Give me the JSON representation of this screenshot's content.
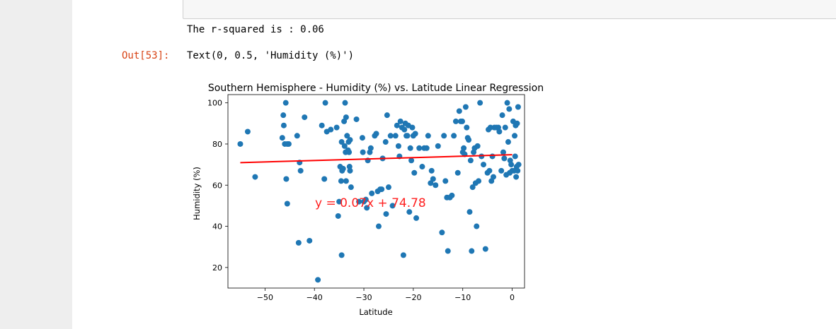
{
  "cell": {
    "stdout": "The r-squared is : 0.06",
    "out_prompt": "Out[53]:",
    "out_text": "Text(0, 0.5, 'Humidity (%)')"
  },
  "colors": {
    "points": "#1f77b4",
    "line": "#ff0000",
    "annotation": "#ff2020"
  },
  "chart_data": {
    "type": "scatter",
    "title": "Southern Hemisphere - Humidity (%) vs. Latitude Linear Regression",
    "xlabel": "Latitude",
    "ylabel": "Humidity (%)",
    "xlim": [
      -57.5,
      2.5
    ],
    "ylim": [
      10,
      104
    ],
    "xticks": [
      -50,
      -40,
      -30,
      -20,
      -10,
      0
    ],
    "yticks": [
      20,
      40,
      60,
      80,
      100
    ],
    "xtick_labels": [
      "−50",
      "−40",
      "−30",
      "−20",
      "−10",
      "0"
    ],
    "ytick_labels": [
      "20",
      "40",
      "60",
      "80",
      "100"
    ],
    "regression": {
      "slope": 0.07,
      "intercept": 74.78,
      "x_range": [
        -55,
        0
      ]
    },
    "annotation": "y = 0.07x + 74.78",
    "grid": false,
    "points": [
      [
        -55,
        80
      ],
      [
        -53.5,
        86
      ],
      [
        -52,
        64
      ],
      [
        -46.5,
        83
      ],
      [
        -46.3,
        94
      ],
      [
        -46.2,
        89
      ],
      [
        -46,
        80
      ],
      [
        -45.8,
        100
      ],
      [
        -45.7,
        63
      ],
      [
        -45.5,
        80
      ],
      [
        -45.5,
        51
      ],
      [
        -45.2,
        80
      ],
      [
        -43.5,
        84
      ],
      [
        -43.2,
        32
      ],
      [
        -43,
        71
      ],
      [
        -42.8,
        67
      ],
      [
        -42,
        93
      ],
      [
        -41,
        33
      ],
      [
        -39.3,
        14
      ],
      [
        -38.5,
        89
      ],
      [
        -38,
        63
      ],
      [
        -37.8,
        100
      ],
      [
        -37.5,
        86
      ],
      [
        -36.7,
        87
      ],
      [
        -35.5,
        88
      ],
      [
        -35.2,
        45
      ],
      [
        -35,
        52
      ],
      [
        -34.8,
        69
      ],
      [
        -34.6,
        62
      ],
      [
        -34.5,
        26
      ],
      [
        -34.5,
        81
      ],
      [
        -34.4,
        67
      ],
      [
        -34.2,
        68
      ],
      [
        -34.0,
        91
      ],
      [
        -33.9,
        79
      ],
      [
        -33.8,
        100
      ],
      [
        -33.7,
        76
      ],
      [
        -33.6,
        93
      ],
      [
        -33.6,
        62
      ],
      [
        -33.4,
        84
      ],
      [
        -33.2,
        77
      ],
      [
        -33.1,
        81
      ],
      [
        -33.0,
        76
      ],
      [
        -32.9,
        69
      ],
      [
        -32.8,
        82
      ],
      [
        -32.8,
        67
      ],
      [
        -32.6,
        59
      ],
      [
        -31.5,
        92
      ],
      [
        -31,
        52
      ],
      [
        -30.3,
        83
      ],
      [
        -30.2,
        76
      ],
      [
        -30,
        52
      ],
      [
        -29.6,
        53
      ],
      [
        -29.4,
        49
      ],
      [
        -29.2,
        72
      ],
      [
        -28.8,
        76
      ],
      [
        -28.6,
        78
      ],
      [
        -28.4,
        56
      ],
      [
        -27.8,
        84
      ],
      [
        -27.5,
        85
      ],
      [
        -27.2,
        57
      ],
      [
        -27,
        40
      ],
      [
        -26.7,
        58
      ],
      [
        -26.4,
        58
      ],
      [
        -26.2,
        73
      ],
      [
        -25.6,
        81
      ],
      [
        -25.5,
        46
      ],
      [
        -25.3,
        94
      ],
      [
        -25,
        59
      ],
      [
        -24.6,
        84
      ],
      [
        -24.2,
        50
      ],
      [
        -23.6,
        84
      ],
      [
        -23.3,
        89
      ],
      [
        -23,
        79
      ],
      [
        -22.8,
        74
      ],
      [
        -22.6,
        91
      ],
      [
        -22.3,
        88
      ],
      [
        -22,
        26
      ],
      [
        -21.8,
        87
      ],
      [
        -21.6,
        90
      ],
      [
        -21.4,
        84
      ],
      [
        -21.2,
        84
      ],
      [
        -21.0,
        89
      ],
      [
        -20.8,
        47
      ],
      [
        -20.6,
        78
      ],
      [
        -20.4,
        72
      ],
      [
        -20.2,
        88
      ],
      [
        -20.0,
        84
      ],
      [
        -19.8,
        66
      ],
      [
        -19.6,
        85
      ],
      [
        -19.4,
        44
      ],
      [
        -18.8,
        78
      ],
      [
        -18.2,
        69
      ],
      [
        -17.8,
        78
      ],
      [
        -17.3,
        78
      ],
      [
        -17,
        84
      ],
      [
        -16.5,
        61
      ],
      [
        -16.3,
        67
      ],
      [
        -16.0,
        63
      ],
      [
        -15.5,
        60
      ],
      [
        -15,
        79
      ],
      [
        -14.2,
        37
      ],
      [
        -13.8,
        84
      ],
      [
        -13.5,
        62
      ],
      [
        -13.2,
        54
      ],
      [
        -13,
        28
      ],
      [
        -12.6,
        54
      ],
      [
        -12.2,
        55
      ],
      [
        -11.8,
        84
      ],
      [
        -11.4,
        91
      ],
      [
        -11.0,
        66
      ],
      [
        -10.7,
        96
      ],
      [
        -10.4,
        91
      ],
      [
        -10.1,
        91
      ],
      [
        -10.0,
        76
      ],
      [
        -9.8,
        78
      ],
      [
        -9.6,
        75
      ],
      [
        -9.4,
        98
      ],
      [
        -9.2,
        88
      ],
      [
        -9.0,
        83
      ],
      [
        -8.8,
        82
      ],
      [
        -8.6,
        47
      ],
      [
        -8.4,
        72
      ],
      [
        -8.2,
        28
      ],
      [
        -8.0,
        59
      ],
      [
        -7.8,
        76
      ],
      [
        -7.6,
        78
      ],
      [
        -7.4,
        61
      ],
      [
        -7.2,
        40
      ],
      [
        -7.0,
        79
      ],
      [
        -6.8,
        62
      ],
      [
        -6.5,
        100
      ],
      [
        -6.2,
        74
      ],
      [
        -5.8,
        70
      ],
      [
        -5.4,
        29
      ],
      [
        -5.0,
        66
      ],
      [
        -4.8,
        87
      ],
      [
        -4.6,
        67
      ],
      [
        -4.4,
        88
      ],
      [
        -4.2,
        62
      ],
      [
        -4.0,
        74
      ],
      [
        -3.6,
        88
      ],
      [
        -3.2,
        88
      ],
      [
        -2.8,
        88
      ],
      [
        -2.2,
        67
      ],
      [
        -2.0,
        94
      ],
      [
        -1.8,
        76
      ],
      [
        -1.6,
        73
      ],
      [
        -1.4,
        88
      ],
      [
        -1.2,
        65
      ],
      [
        -1.0,
        100
      ],
      [
        -0.8,
        81
      ],
      [
        -0.6,
        97
      ],
      [
        -0.4,
        72
      ],
      [
        -0.2,
        70
      ],
      [
        0.0,
        67
      ],
      [
        0.2,
        91
      ],
      [
        0.4,
        67
      ],
      [
        0.5,
        84
      ],
      [
        0.6,
        74
      ],
      [
        0.7,
        89
      ],
      [
        0.8,
        64
      ],
      [
        0.9,
        69
      ],
      [
        1.0,
        90
      ],
      [
        1.1,
        67
      ],
      [
        1.2,
        98
      ],
      [
        1.3,
        70
      ],
      [
        -0.5,
        66
      ],
      [
        -2.6,
        86
      ],
      [
        -3.8,
        64
      ]
    ]
  }
}
